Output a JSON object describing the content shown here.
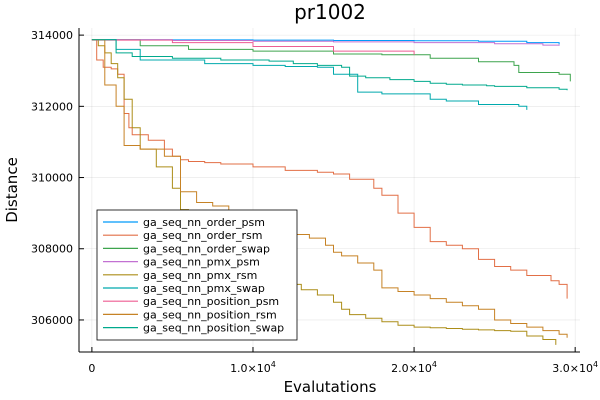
{
  "chart_data": {
    "type": "line",
    "title": "pr1002",
    "xlabel": "Evalutations",
    "ylabel": "Distance",
    "xlim": [
      -800,
      30300
    ],
    "ylim": [
      305100,
      314200
    ],
    "x_ticks": [
      {
        "value": 0,
        "mantissa": "0",
        "exponent": ""
      },
      {
        "value": 10000,
        "mantissa": "1.0×10",
        "exponent": "4"
      },
      {
        "value": 20000,
        "mantissa": "2.0×10",
        "exponent": "4"
      },
      {
        "value": 30000,
        "mantissa": "3.0×10",
        "exponent": "4"
      }
    ],
    "y_ticks": [
      {
        "value": 306000,
        "label": "306000"
      },
      {
        "value": 308000,
        "label": "308000"
      },
      {
        "value": 310000,
        "label": "310000"
      },
      {
        "value": 312000,
        "label": "312000"
      },
      {
        "value": 314000,
        "label": "314000"
      }
    ],
    "grid": true,
    "legend_position": "bottom-left",
    "series": [
      {
        "name": "ga_seq_nn_order_psm",
        "color": "#009af9",
        "x": [
          0,
          5000,
          10000,
          15000,
          20000,
          24000,
          27000,
          29000
        ],
        "y": [
          313870,
          313865,
          313860,
          313850,
          313840,
          313830,
          313790,
          313740
        ]
      },
      {
        "name": "ga_seq_nn_order_rsm",
        "color": "#e26f46",
        "x": [
          0,
          300,
          700,
          1200,
          1600,
          2000,
          2300,
          2500,
          3500,
          4500,
          5000,
          5500,
          6000,
          7000,
          8000,
          10000,
          12000,
          14000,
          15000,
          16000,
          17500,
          18000,
          19000,
          20000,
          21000,
          22000,
          23000,
          24000,
          25000,
          26000,
          27000,
          28500,
          29000,
          29500
        ],
        "y": [
          313870,
          313300,
          313100,
          313050,
          312900,
          311800,
          311400,
          311200,
          311050,
          310800,
          310600,
          310500,
          310450,
          310420,
          310380,
          310300,
          310200,
          310150,
          310100,
          309950,
          309700,
          309500,
          309000,
          308600,
          308200,
          308100,
          308000,
          307700,
          307500,
          307400,
          307250,
          307100,
          307000,
          306600
        ]
      },
      {
        "name": "ga_seq_nn_order_swap",
        "color": "#3da44d",
        "x": [
          0,
          3000,
          6000,
          10000,
          15000,
          18000,
          21000,
          24000,
          26200,
          26500,
          29000,
          29700
        ],
        "y": [
          313870,
          313700,
          313600,
          313550,
          313470,
          313450,
          313350,
          313250,
          313150,
          312950,
          312900,
          312700
        ]
      },
      {
        "name": "ga_seq_nn_pmx_psm",
        "color": "#c271d2",
        "x": [
          0,
          5000,
          10000,
          15000,
          20000,
          25000,
          28000,
          29000
        ],
        "y": [
          313870,
          313850,
          313830,
          313810,
          313790,
          313760,
          313720,
          313700
        ]
      },
      {
        "name": "ga_seq_nn_pmx_rsm",
        "color": "#ac8d18",
        "x": [
          0,
          400,
          800,
          1200,
          1600,
          2000,
          2500,
          3000,
          4000,
          5000,
          5500,
          6000,
          7000,
          7800,
          8500,
          9000,
          9500,
          10000,
          11000,
          12000,
          13000,
          14000,
          15000,
          15500,
          16000,
          17000,
          18000,
          19000,
          20000,
          21000,
          22000,
          23000,
          24000,
          25000,
          26000,
          27000,
          28000,
          28800
        ],
        "y": [
          313870,
          313700,
          313500,
          313200,
          312800,
          312200,
          311400,
          310800,
          310300,
          309700,
          309100,
          308900,
          308600,
          308200,
          307900,
          307700,
          307450,
          307300,
          307150,
          307000,
          306850,
          306700,
          306500,
          306300,
          306150,
          306050,
          305950,
          305850,
          305800,
          305780,
          305760,
          305740,
          305720,
          305700,
          305680,
          305550,
          305450,
          305300
        ]
      },
      {
        "name": "ga_seq_nn_pmx_swap",
        "color": "#00a9ad",
        "x": [
          0,
          1500,
          3000,
          7000,
          10000,
          12000,
          14000,
          15000,
          16500,
          18000,
          21000,
          22000,
          24000,
          26500,
          27000
        ],
        "y": [
          313870,
          313600,
          313300,
          313200,
          313150,
          313120,
          313100,
          312900,
          312400,
          312350,
          312200,
          312150,
          312050,
          312000,
          311900
        ]
      },
      {
        "name": "ga_seq_nn_position_psm",
        "color": "#ed5d92",
        "x": [
          0,
          5000,
          10000,
          15000,
          20000
        ],
        "y": [
          313860,
          313790,
          313680,
          313550,
          313450
        ]
      },
      {
        "name": "ga_seq_nn_position_rsm",
        "color": "#c68225",
        "x": [
          0,
          800,
          1500,
          2000,
          3000,
          4500,
          5500,
          6500,
          7500,
          8500,
          9500,
          10500,
          11500,
          12500,
          13500,
          14500,
          15000,
          15500,
          16500,
          17500,
          18000,
          19000,
          20000,
          21000,
          22000,
          23000,
          24000,
          25000,
          26000,
          27000,
          28000,
          29000,
          29500
        ],
        "y": [
          313870,
          312600,
          312000,
          310900,
          310800,
          310600,
          309600,
          309300,
          309200,
          309000,
          308900,
          308800,
          308600,
          308400,
          308300,
          308100,
          307900,
          307800,
          307600,
          307400,
          306900,
          306800,
          306700,
          306600,
          306500,
          306400,
          306300,
          306000,
          305900,
          305800,
          305700,
          305600,
          305500
        ]
      },
      {
        "name": "ga_seq_nn_position_swap",
        "color": "#00a98d",
        "x": [
          0,
          1500,
          2500,
          5000,
          8000,
          11000,
          12500,
          14000,
          15500,
          16000,
          17000,
          18500,
          20000,
          21000,
          22000,
          23000,
          24500,
          25000,
          27000,
          29000,
          29500
        ],
        "y": [
          313870,
          313500,
          313400,
          313350,
          313300,
          313270,
          313200,
          313150,
          313100,
          312850,
          312800,
          312750,
          312700,
          312650,
          312620,
          312600,
          312580,
          312560,
          312520,
          312480,
          312450
        ]
      }
    ]
  }
}
